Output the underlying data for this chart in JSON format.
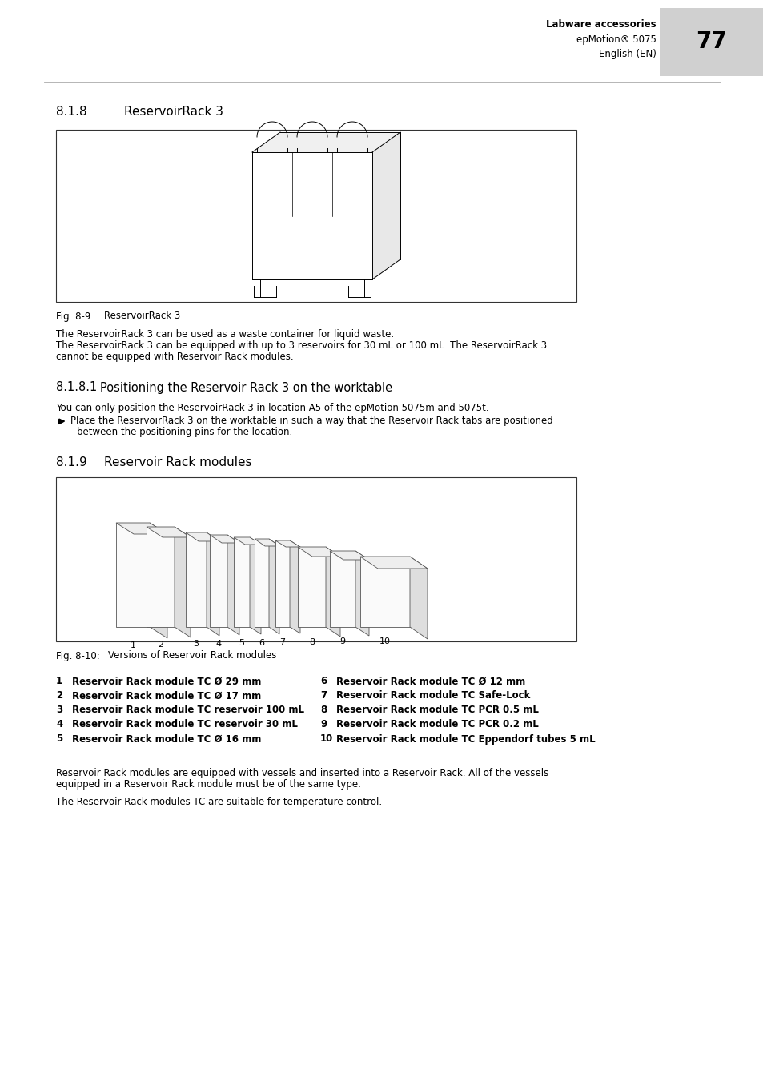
{
  "page_number": "77",
  "header_bold": "Labware accessories",
  "header_line2": "epMotion® 5075",
  "header_line3": "English (EN)",
  "section_818": "8.1.8",
  "section_818_title": "ReservoirRack 3",
  "fig_89_label": "Fig. 8-9:",
  "fig_89_title": "    ReservoirRack 3",
  "text_818_1": "The ReservoirRack 3 can be used as a waste container for liquid waste.",
  "text_818_2": "The ReservoirRack 3 can be equipped with up to 3 reservoirs for 30 mL or 100 mL. The ReservoirRack 3",
  "text_818_3": "cannot be equipped with Reservoir Rack modules.",
  "section_8181": "8.1.8.1",
  "section_8181_title": "Positioning the Reservoir Rack 3 on the worktable",
  "text_8181_1": "You can only position the ReservoirRack 3 in location A5 of the epMotion 5075m and 5075t.",
  "bullet_text": "Place the ReservoirRack 3 on the worktable in such a way that the Reservoir Rack tabs are positioned",
  "bullet_text2": "between the positioning pins for the location.",
  "section_819": "8.1.9",
  "section_819_title": "Reservoir Rack modules",
  "fig_810_label": "Fig. 8-10:",
  "fig_810_title": "   Versions of Reservoir Rack modules",
  "items": [
    {
      "num": "1",
      "text": "Reservoir Rack module TC Ø 29 mm"
    },
    {
      "num": "2",
      "text": "Reservoir Rack module TC Ø 17 mm"
    },
    {
      "num": "3",
      "text": "Reservoir Rack module TC reservoir 100 mL"
    },
    {
      "num": "4",
      "text": "Reservoir Rack module TC reservoir 30 mL"
    },
    {
      "num": "5",
      "text": "Reservoir Rack module TC Ø 16 mm"
    },
    {
      "num": "6",
      "text": "Reservoir Rack module TC Ø 12 mm"
    },
    {
      "num": "7",
      "text": "Reservoir Rack module TC Safe-Lock"
    },
    {
      "num": "8",
      "text": "Reservoir Rack module TC PCR 0.5 mL"
    },
    {
      "num": "9",
      "text": "Reservoir Rack module TC PCR 0.2 mL"
    },
    {
      "num": "10",
      "text": "Reservoir Rack module TC Eppendorf tubes 5 mL"
    }
  ],
  "text_end_1": "Reservoir Rack modules are equipped with vessels and inserted into a Reservoir Rack. All of the vessels",
  "text_end_2": "equipped in a Reservoir Rack module must be of the same type.",
  "text_end_3": "The Reservoir Rack modules TC are suitable for temperature control.",
  "bg_color": "#ffffff",
  "text_color": "#000000",
  "header_bg": "#d0d0d0",
  "border_color": "#333333"
}
